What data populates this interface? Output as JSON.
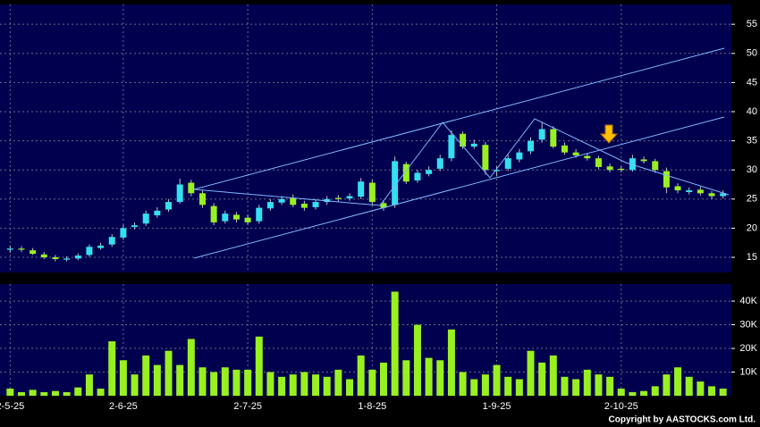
{
  "chart_data": [
    {
      "type": "candlestick",
      "up_color": "#33e0f0",
      "down_color": "#99f020",
      "grid": true,
      "ylim": [
        12.4,
        58.4
      ],
      "yticks": [
        15,
        20,
        25,
        30,
        35,
        40,
        45,
        50,
        55
      ],
      "open": [
        16.3,
        16.5,
        16.2,
        15.5,
        15,
        14.6,
        14.8,
        15.4,
        16.6,
        17.2,
        18.4,
        20.2,
        20.8,
        22.2,
        23.2,
        24.5,
        27.8,
        26,
        23.8,
        21.2,
        22.3,
        21.8,
        21.2,
        23.4,
        24.4,
        25.2,
        24.2,
        23.6,
        24.5,
        25.2,
        25.1,
        25.4,
        27.8,
        24.3,
        24,
        31,
        28.2,
        29.3,
        30.2,
        32,
        36.2,
        34,
        34.3,
        29.8,
        30.2,
        31.8,
        33.2,
        35.2,
        37,
        34.2,
        33,
        32.4,
        32,
        30.6,
        30.2,
        30,
        31.8,
        31.5,
        29.8,
        27.2,
        26.2,
        26.6,
        26,
        25.5
      ],
      "high": [
        17,
        16.9,
        16.6,
        15.9,
        15.4,
        15.2,
        15.7,
        17.2,
        17.5,
        19,
        20.6,
        21,
        23,
        23.6,
        25,
        28.5,
        28.3,
        26.5,
        24.3,
        23,
        22.8,
        22.3,
        24,
        25,
        25.5,
        25.8,
        24.7,
        25,
        25.5,
        25.7,
        26,
        28.6,
        28.3,
        24.8,
        32.3,
        31.4,
        30,
        30.6,
        32.6,
        36.8,
        36.6,
        35.2,
        34.8,
        30.6,
        32.6,
        33.6,
        35.6,
        38.2,
        37.5,
        34.7,
        33.6,
        32.9,
        32.4,
        31.1,
        30.6,
        32.6,
        32.3,
        31.9,
        30.4,
        27.7,
        27,
        27.1,
        26.4,
        26.5
      ],
      "low": [
        15.8,
        15.9,
        15.4,
        14.7,
        14.3,
        14.3,
        14.5,
        15.1,
        16.3,
        16.8,
        18,
        19.8,
        20.4,
        21.8,
        22.8,
        24.2,
        25.5,
        23.5,
        20.5,
        20.8,
        21,
        20.6,
        20.8,
        23,
        24,
        23.6,
        23,
        23.2,
        24,
        24.6,
        24.7,
        25,
        24,
        23,
        23.5,
        27.6,
        27.8,
        28.9,
        29.8,
        31.5,
        33.6,
        33.6,
        29.2,
        28.9,
        29.8,
        31.3,
        32.7,
        34.7,
        33.7,
        32.6,
        32.1,
        31.6,
        30.1,
        29.6,
        29.6,
        29.7,
        31.1,
        29.5,
        26,
        26,
        25.8,
        25.6,
        25,
        25.1
      ],
      "close": [
        16.5,
        16.3,
        15.6,
        15,
        14.7,
        14.8,
        15.3,
        16.8,
        17,
        18.5,
        20,
        20.5,
        22.5,
        23,
        24.5,
        27.5,
        26,
        24,
        21,
        22.5,
        21.5,
        21,
        23.5,
        24.5,
        25,
        24,
        23.5,
        24.5,
        25,
        25,
        25.5,
        28,
        24.5,
        23.5,
        31.5,
        28,
        29.5,
        30,
        32,
        36,
        34,
        34.5,
        30,
        30,
        32,
        33,
        35,
        37,
        34,
        33,
        32.5,
        32,
        30.5,
        30,
        30,
        32,
        31.5,
        30,
        27,
        26.5,
        26.5,
        26,
        25.5,
        26
      ]
    },
    {
      "type": "bar",
      "color": "#99f020",
      "grid": true,
      "categories": [
        "2-5-25",
        null,
        null,
        null,
        null,
        null,
        null,
        null,
        null,
        null,
        "2-6-25",
        null,
        null,
        null,
        null,
        null,
        null,
        null,
        null,
        null,
        null,
        "2-7-25",
        null,
        null,
        null,
        null,
        null,
        null,
        null,
        null,
        null,
        null,
        "1-8-25",
        null,
        null,
        null,
        null,
        null,
        null,
        null,
        null,
        null,
        null,
        "1-9-25",
        null,
        null,
        null,
        null,
        null,
        null,
        null,
        null,
        null,
        null,
        "2-10-25",
        null,
        null,
        null,
        null,
        null,
        null,
        null,
        null,
        null
      ],
      "values": [
        3000,
        1500,
        2500,
        1500,
        2000,
        1500,
        3500,
        9000,
        3000,
        23000,
        15000,
        9000,
        17000,
        13000,
        19000,
        13000,
        24000,
        12000,
        10000,
        12000,
        11000,
        11000,
        25000,
        10000,
        8000,
        9000,
        10000,
        9000,
        8000,
        11000,
        7000,
        17000,
        11000,
        14000,
        44000,
        15000,
        30000,
        16000,
        15000,
        28000,
        10000,
        7000,
        9000,
        13000,
        8000,
        7000,
        19000,
        14000,
        17000,
        8000,
        7000,
        11000,
        9000,
        8000,
        3000,
        1500,
        2000,
        4000,
        9000,
        12000,
        8000,
        6000,
        4000,
        3000
      ],
      "ylim": [
        0,
        47200
      ],
      "yticks": [
        {
          "value": 10000,
          "label": "10K"
        },
        {
          "value": 20000,
          "label": "20K"
        },
        {
          "value": 30000,
          "label": "30K"
        },
        {
          "value": 40000,
          "label": "40K"
        }
      ]
    }
  ],
  "footer": "Copyright by AASTOCKS.com Ltd."
}
